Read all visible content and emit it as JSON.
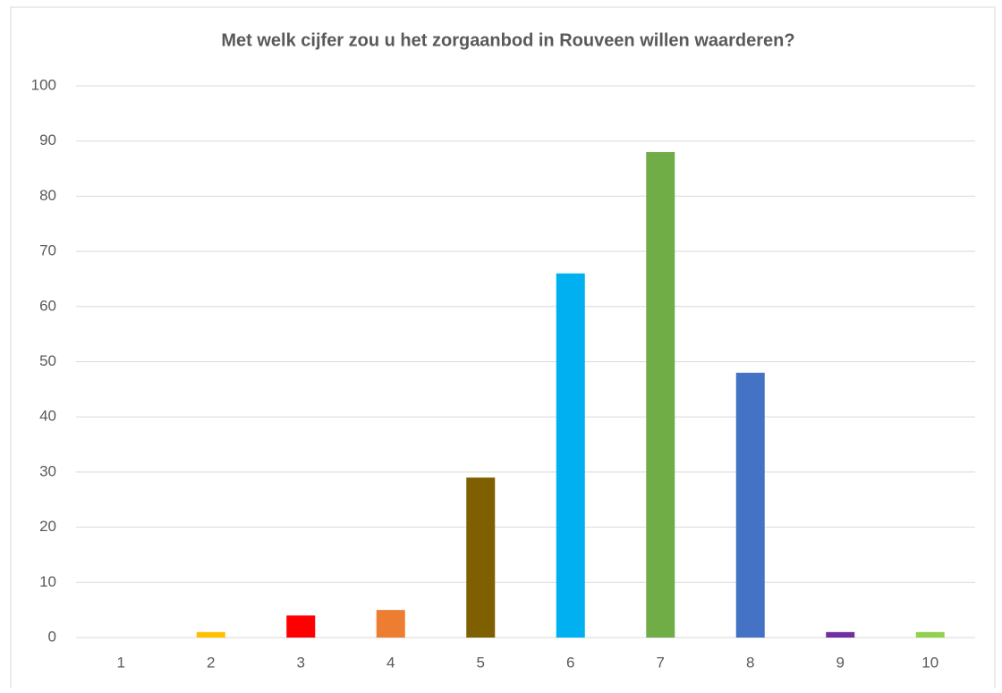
{
  "chart_data": {
    "type": "bar",
    "title": "Met welk cijfer zou u het zorgaanbod in Rouveen willen waarderen?",
    "categories": [
      "1",
      "2",
      "3",
      "4",
      "5",
      "6",
      "7",
      "8",
      "9",
      "10"
    ],
    "values": [
      0,
      1,
      4,
      5,
      29,
      66,
      88,
      48,
      1,
      1
    ],
    "colors": [
      "#4472c4",
      "#ffc000",
      "#ff0000",
      "#ed7d31",
      "#7f6000",
      "#00b0f0",
      "#70ad47",
      "#4472c4",
      "#7030a0",
      "#92d050"
    ],
    "ylim": [
      0,
      100
    ],
    "yticks": [
      0,
      10,
      20,
      30,
      40,
      50,
      60,
      70,
      80,
      90,
      100
    ],
    "grid": true
  }
}
